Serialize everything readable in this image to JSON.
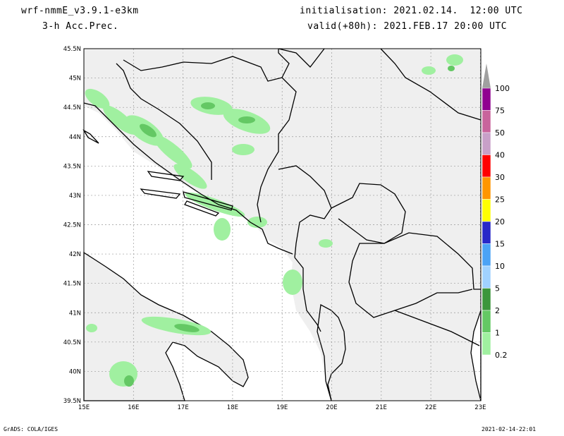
{
  "header": {
    "model": "wrf-nmmE_v3.9.1-e3km",
    "variable": "3-h Acc.Prec.",
    "init": "initialisation: 2021.02.14.  12:00 UTC",
    "valid": "valid(+80h): 2021.FEB.17 20:00 UTC"
  },
  "footer": {
    "left": "GrADS: COLA/IGES",
    "right": "2021-02-14-22:01"
  },
  "map": {
    "lat_labels": [
      "45.5N",
      "45N",
      "44.5N",
      "44N",
      "43.5N",
      "43N",
      "42.5N",
      "42N",
      "41.5N",
      "41N",
      "40.5N",
      "40N",
      "39.5N"
    ],
    "lon_labels": [
      "15E",
      "16E",
      "17E",
      "18E",
      "19E",
      "20E",
      "21E",
      "22E",
      "23E"
    ],
    "land_color": "#efefef",
    "sea_color": "#ffffff",
    "border_color": "#000000"
  },
  "legend": {
    "labels": [
      "100",
      "75",
      "50",
      "40",
      "30",
      "25",
      "20",
      "15",
      "10",
      "5",
      "2",
      "1",
      "0.2"
    ],
    "colors": [
      "#a0a0a0",
      "#900090",
      "#c8649c",
      "#c8a0c8",
      "#ff0000",
      "#ff9600",
      "#ffff00",
      "#2828c8",
      "#4ba3f5",
      "#a0d2ff",
      "#3c963c",
      "#64c864",
      "#a0f0a0"
    ]
  }
}
